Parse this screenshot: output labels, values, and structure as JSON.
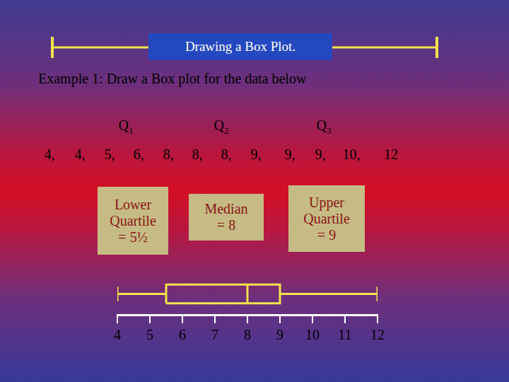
{
  "title": "Drawing a Box Plot.",
  "heading": "Example 1:  Draw a Box plot for the data below",
  "data_values": [
    4,
    4,
    5,
    6,
    8,
    8,
    8,
    9,
    9,
    9,
    10,
    12
  ],
  "quartile_labels": [
    {
      "letter": "Q",
      "index": "1"
    },
    {
      "letter": "Q",
      "index": "2"
    },
    {
      "letter": "Q",
      "index": "3"
    }
  ],
  "callouts": [
    [
      "Lower",
      "Quartile",
      "= 5½"
    ],
    [
      "Median",
      "= 8"
    ],
    [
      "Upper",
      "Quartile",
      "= 9"
    ]
  ],
  "chart_data": {
    "type": "box",
    "min": 4,
    "q1": 5.5,
    "median": 8,
    "q3": 9,
    "max": 12,
    "xlim": [
      4,
      12
    ],
    "xticks": [
      4,
      5,
      6,
      7,
      8,
      9,
      10,
      11,
      12
    ],
    "color": "#f2e44a"
  }
}
